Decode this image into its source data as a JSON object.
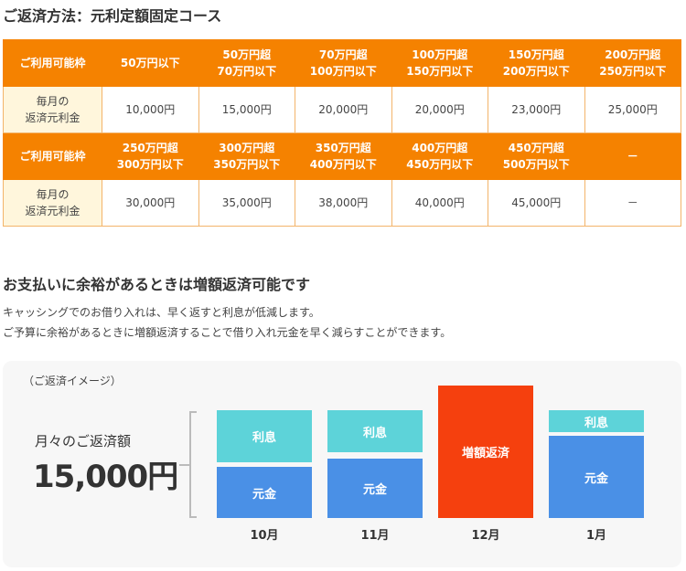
{
  "title": "ご返済方法：元利定額固定コース",
  "table": {
    "rows": [
      {
        "header": "ご利用可能枠",
        "cells": [
          "50万円以下",
          "50万円超\n70万円以下",
          "70万円超\n100万円以下",
          "100万円超\n150万円以下",
          "150万円超\n200万円以下",
          "200万円超\n250万円以下"
        ]
      },
      {
        "header": "毎月の\n返済元利金",
        "cells": [
          "10,000円",
          "15,000円",
          "20,000円",
          "20,000円",
          "23,000円",
          "25,000円"
        ]
      },
      {
        "header": "ご利用可能枠",
        "cells": [
          "250万円超\n300万円以下",
          "300万円超\n350万円以下",
          "350万円超\n400万円以下",
          "400万円超\n450万円以下",
          "450万円超\n500万円以下",
          "－"
        ]
      },
      {
        "header": "毎月の\n返済元利金",
        "cells": [
          "30,000円",
          "35,000円",
          "38,000円",
          "40,000円",
          "45,000円",
          "－"
        ]
      }
    ]
  },
  "section2": {
    "title": "お支払いに余裕があるときは増額返済可能です",
    "lines": [
      "キャッシングでのお借り入れは、早く返すと利息が低減します。",
      "ご予算に余裕があるときに増額返済することで借り入れ元金を早く減らすことができます。"
    ]
  },
  "image": {
    "caption": "（ご返済イメージ）",
    "monthly_label": "月々のご返済額",
    "amount": "15,000円",
    "interest_label": "利息",
    "principal_label": "元金",
    "extra_label": "増額返済",
    "months": [
      "10月",
      "11月",
      "12月",
      "1月"
    ]
  }
}
